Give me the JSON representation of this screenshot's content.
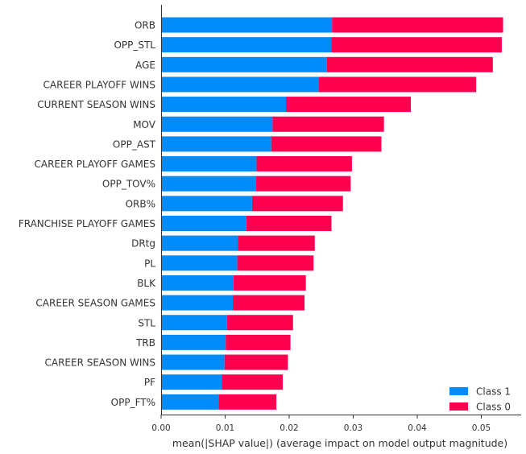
{
  "chart_data": {
    "type": "bar",
    "stacked": true,
    "orientation": "horizontal",
    "categories": [
      "ORB",
      "OPP_STL",
      "AGE",
      "CAREER PLAYOFF WINS",
      "CURRENT SEASON WINS",
      "MOV",
      "OPP_AST",
      "CAREER PLAYOFF GAMES",
      "OPP_TOV%",
      "ORB%",
      "FRANCHISE PLAYOFF GAMES",
      "DRtg",
      "PL",
      "BLK",
      "CAREER SEASON GAMES",
      "STL",
      "TRB",
      "CAREER SEASON WINS",
      "PF",
      "OPP_FT%"
    ],
    "series": [
      {
        "name": "Class 1",
        "color": "#008bfb",
        "values": [
          0.0267,
          0.0266,
          0.0259,
          0.0246,
          0.0195,
          0.0174,
          0.0172,
          0.0149,
          0.0148,
          0.0142,
          0.0133,
          0.012,
          0.0119,
          0.0113,
          0.0112,
          0.0103,
          0.0101,
          0.0099,
          0.0095,
          0.009
        ]
      },
      {
        "name": "Class 0",
        "color": "#ff0051",
        "values": [
          0.0267,
          0.0266,
          0.0259,
          0.0246,
          0.0195,
          0.0174,
          0.0172,
          0.0149,
          0.0148,
          0.0142,
          0.0133,
          0.012,
          0.0119,
          0.0113,
          0.0112,
          0.0103,
          0.0101,
          0.0099,
          0.0095,
          0.009
        ]
      }
    ],
    "xlabel": "mean(|SHAP value|) (average impact on model output magnitude)",
    "xlim": [
      0,
      0.056
    ],
    "xticks": [
      "0.00",
      "0.01",
      "0.02",
      "0.03",
      "0.04",
      "0.05"
    ],
    "grid": false,
    "legend": "bottom-right"
  }
}
